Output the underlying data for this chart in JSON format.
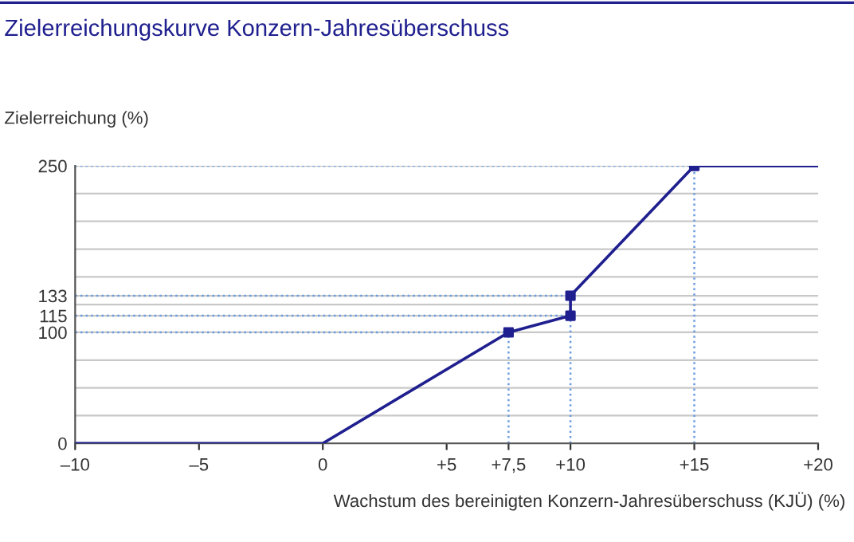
{
  "chart_data": {
    "type": "line",
    "title": "Zielerreichungskurve Konzern-Jahresüberschuss",
    "xlabel": "Wachstum des bereinigten Konzern-Jahresüberschuss (KJÜ) (%)",
    "ylabel": "Zielerreichung (%)",
    "series": [
      {
        "color": "#1f1f8f",
        "x": [
          -10,
          0,
          7.5,
          10,
          10,
          15,
          20
        ],
        "values": [
          0,
          0,
          100,
          115,
          133,
          250,
          250
        ],
        "marker": "none"
      },
      {
        "type": "scatter",
        "color": "#1f1f8f",
        "x": [
          7.5,
          10,
          10,
          15
        ],
        "values": [
          100,
          115,
          133,
          250
        ],
        "marker": "square"
      }
    ],
    "xlim": [
      -10,
      20
    ],
    "xticks": [
      {
        "value": -10,
        "label": "–10"
      },
      {
        "value": -5,
        "label": "–5"
      },
      0,
      {
        "value": 5,
        "label": "+5"
      },
      {
        "value": 7.5,
        "label": "+7,5"
      },
      {
        "value": 10,
        "label": "+10"
      },
      {
        "value": 15,
        "label": "+15"
      },
      {
        "value": 20,
        "label": "+20"
      }
    ],
    "ylim": [
      0,
      250
    ],
    "yticks": [
      0,
      {
        "value": 25,
        "label": null
      },
      {
        "value": 50,
        "label": null
      },
      {
        "value": 75,
        "label": null
      },
      100,
      115,
      {
        "value": 125,
        "label": null
      },
      133,
      {
        "value": 150,
        "label": null
      },
      {
        "value": 175,
        "label": null
      },
      {
        "value": 200,
        "label": null
      },
      {
        "value": 225,
        "label": null
      },
      250
    ],
    "grid": "y",
    "ref_lines": [
      {
        "axis": "y",
        "value": 250,
        "color": "#6a9be0",
        "line_style": "dotted"
      },
      {
        "axis": "y",
        "value": 133,
        "color": "#6a9be0",
        "line_style": "dotted"
      },
      {
        "axis": "y",
        "value": 115,
        "color": "#6a9be0",
        "line_style": "dotted"
      },
      {
        "axis": "y",
        "value": 100,
        "color": "#6a9be0",
        "line_style": "dotted"
      },
      {
        "axis": "x",
        "value": 7.5,
        "color": "#6a9be0",
        "line_style": "dotted"
      },
      {
        "axis": "x",
        "value": 10,
        "color": "#6a9be0",
        "line_style": "dotted"
      },
      {
        "axis": "x",
        "value": 15,
        "color": "#6a9be0",
        "line_style": "dotted"
      }
    ]
  }
}
